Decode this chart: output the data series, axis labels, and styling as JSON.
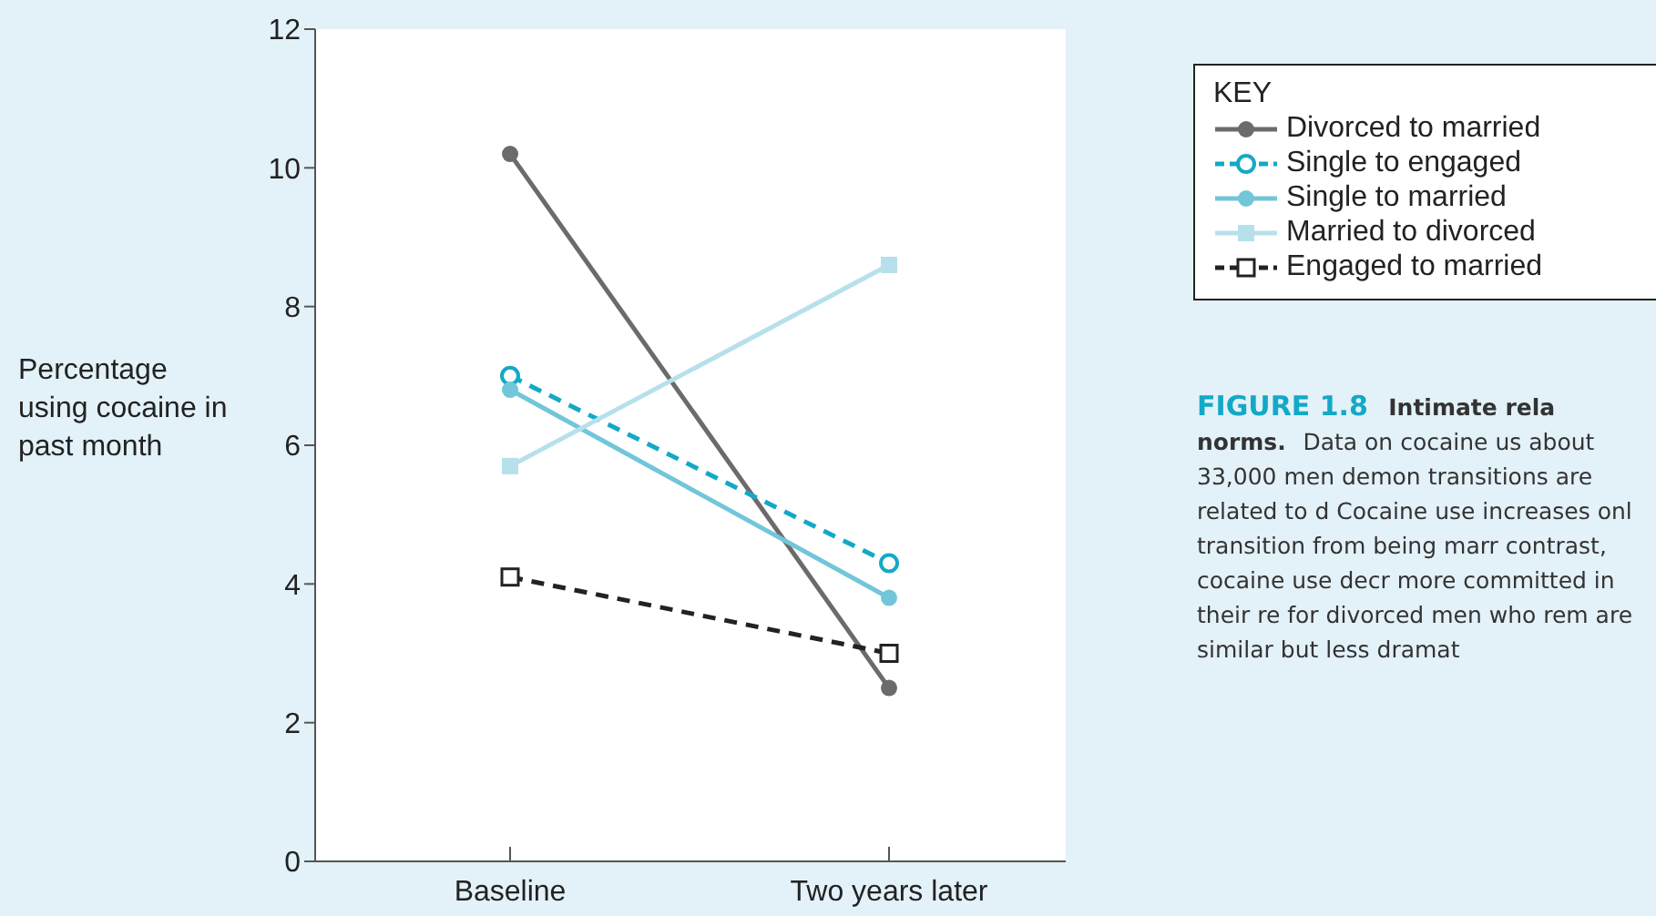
{
  "chart_data": {
    "type": "line",
    "ylabel": "Percentage using cocaine in past month",
    "legend_title": "KEY",
    "categories": [
      "Baseline",
      "Two years later"
    ],
    "series": [
      {
        "name": "Divorced to married",
        "color": "#6d6a6b",
        "values": [
          10.2,
          2.5
        ],
        "marker": "circle",
        "line_style": "solid"
      },
      {
        "name": "Single to engaged",
        "color": "#13a9c6",
        "values": [
          7.0,
          4.3
        ],
        "marker": "circle",
        "line_style": "dashed"
      },
      {
        "name": "Single to married",
        "color": "#72c6d9",
        "values": [
          6.8,
          3.8
        ],
        "marker": "circle",
        "line_style": "solid"
      },
      {
        "name": "Married to divorced",
        "color": "#b6e0ec",
        "values": [
          5.7,
          8.6
        ],
        "marker": "square",
        "line_style": "solid"
      },
      {
        "name": "Engaged to married",
        "color": "#222222",
        "values": [
          4.1,
          3.0
        ],
        "marker": "square",
        "line_style": "dashed"
      }
    ],
    "ylim": [
      0,
      12
    ],
    "yticks": [
      0,
      2,
      4,
      6,
      8,
      10,
      12
    ],
    "grid": false,
    "legend": "top right",
    "annotations": [
      "FIGURE 1.8",
      "Intimate rela norms.",
      "Data on cocaine us about 33,000 men demon transitions are related to d Cocaine use increases onl transition from being marr contrast, cocaine use decr more committed in their re for divorced men who rem are similar but less dramat"
    ]
  }
}
